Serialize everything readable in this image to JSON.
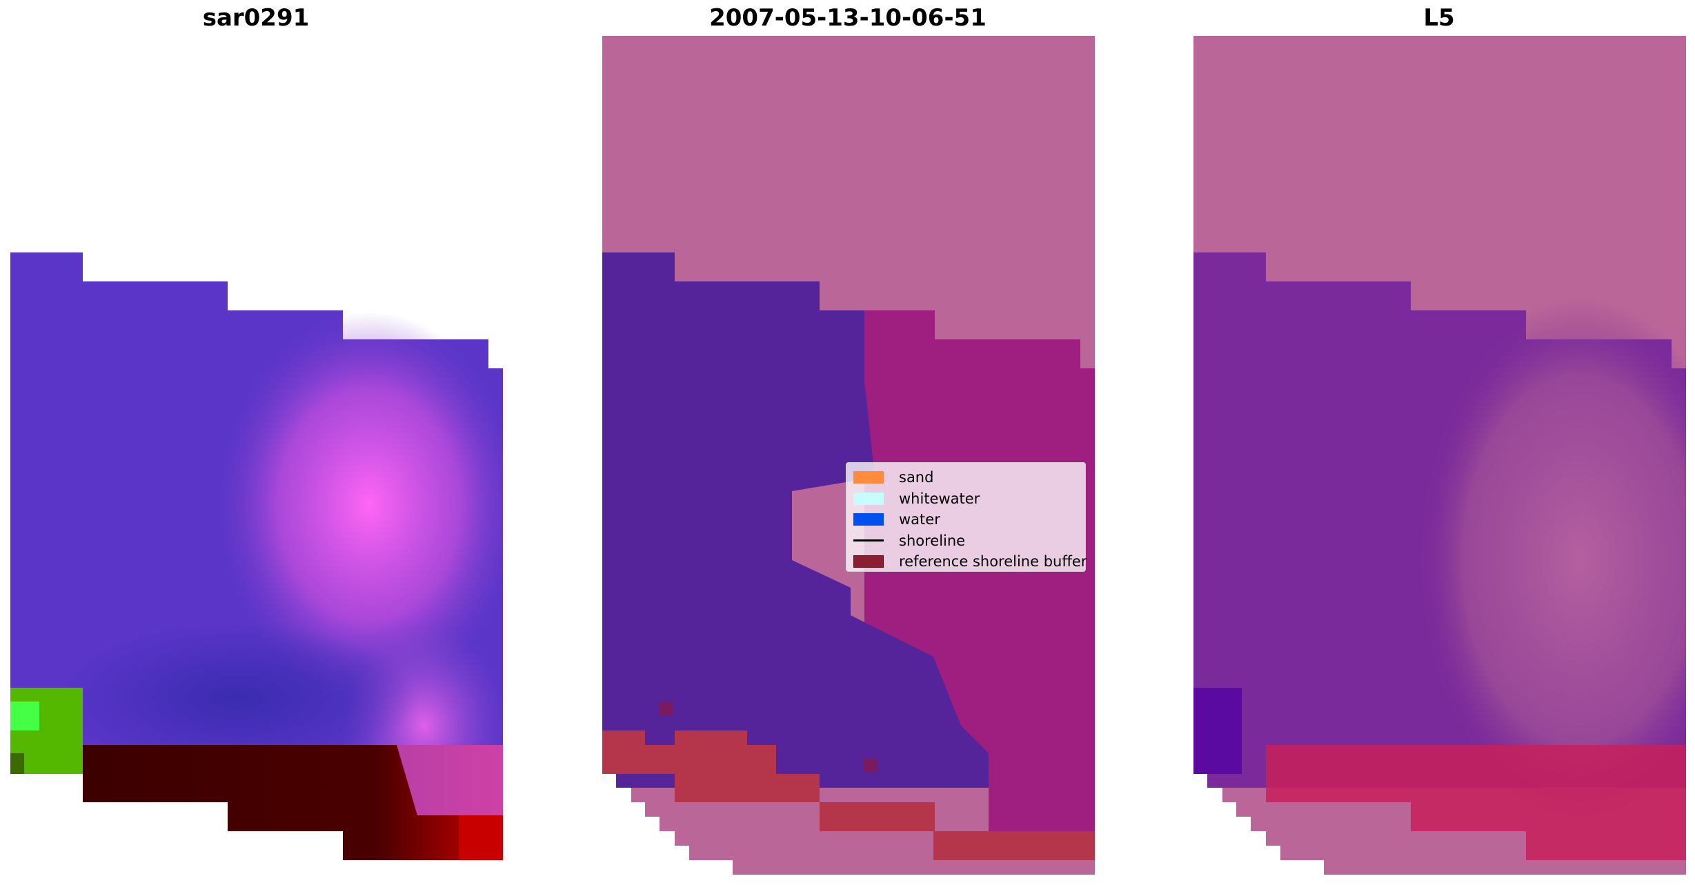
{
  "panels": [
    {
      "title": "sar0291"
    },
    {
      "title": "2007-05-13-10-06-51"
    },
    {
      "title": "L5"
    }
  ],
  "legend": [
    {
      "label": "sand",
      "color": "#ff8c3c",
      "icon": "patch"
    },
    {
      "label": "whitewater",
      "color": "#c8fbfb",
      "icon": "patch"
    },
    {
      "label": "water",
      "color": "#0050f0",
      "icon": "patch"
    },
    {
      "label": "shoreline",
      "color": "#000000",
      "icon": "line"
    },
    {
      "label": "reference shoreline buffer",
      "color": "#8c1e32",
      "icon": "patch"
    }
  ],
  "colors": {
    "mask": "#bb6698",
    "sar_water": "#5a35c8",
    "sar_pink": "#ff66f0",
    "sar_dark": "#400000",
    "sar_red": "#d00000",
    "sar_green": "#55b800",
    "class_water": "#55239a",
    "class_pink": "#9e1f80",
    "class_buffer": "#b5364a",
    "l5_purple": "#7a2a9a",
    "l5_pink": "#b05a98",
    "l5_red": "#c8205a"
  }
}
